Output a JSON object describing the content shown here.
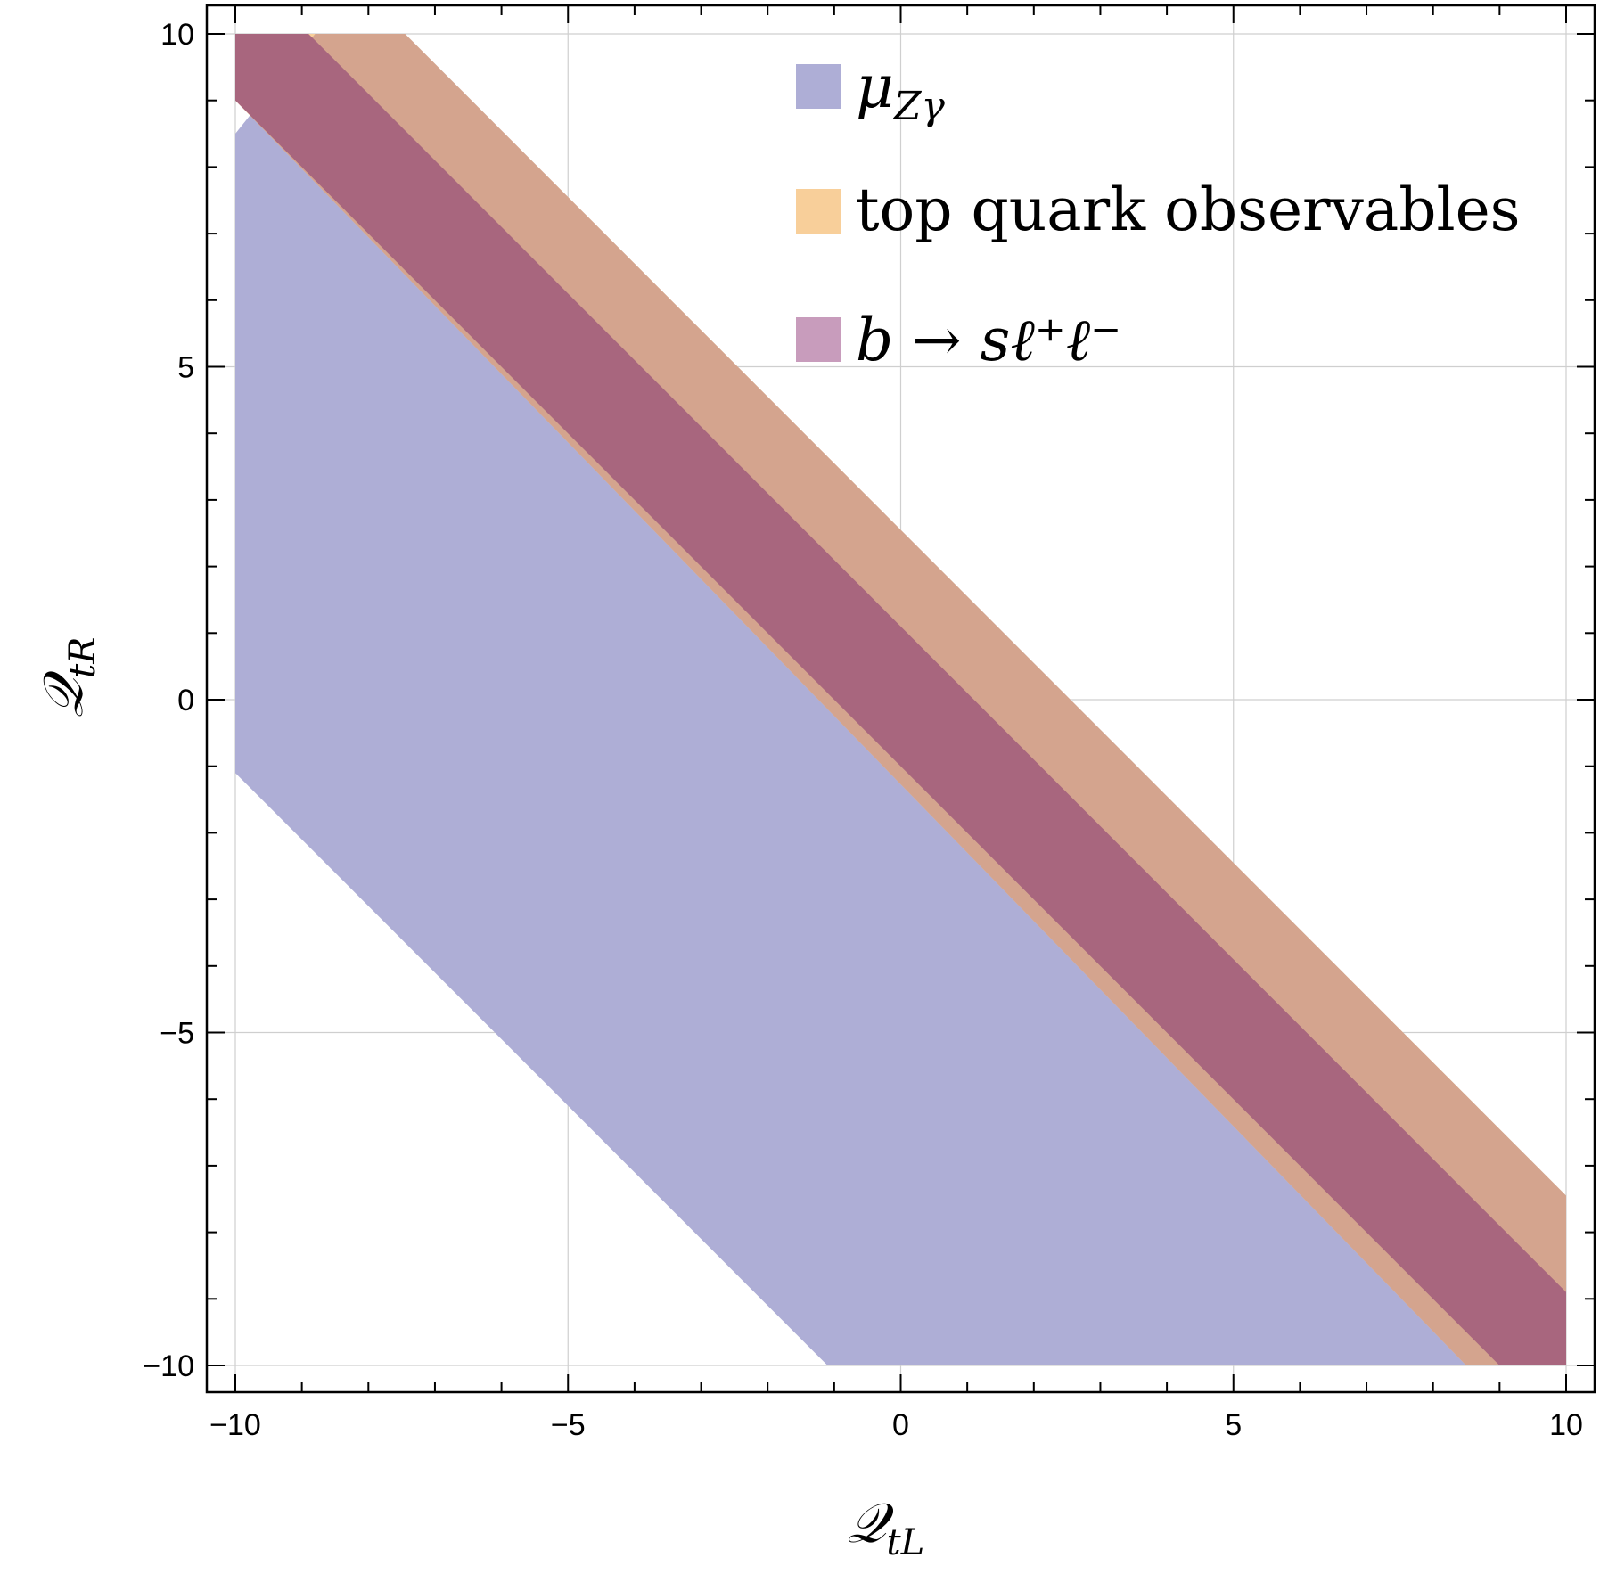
{
  "chart_data": {
    "type": "area",
    "title": "",
    "xlabel": {
      "main": "𝒬",
      "sub": "tL"
    },
    "ylabel": {
      "main": "𝒬",
      "sub": "tR"
    },
    "xlim": [
      -10,
      10
    ],
    "ylim": [
      -10,
      10
    ],
    "xticks": [
      -10,
      -5,
      0,
      5,
      10
    ],
    "yticks": [
      -10,
      -5,
      0,
      5,
      10
    ],
    "xtick_labels": [
      "−10",
      "−5",
      "0",
      "5",
      "10"
    ],
    "ytick_labels": [
      "−10",
      "−5",
      "0",
      "5",
      "10"
    ],
    "grid": true,
    "legend_position": "top-right",
    "series": [
      {
        "name": "μ_{Zγ}",
        "legend_main": "μ",
        "legend_sub": "Zγ",
        "color": "#aeaed6",
        "polygon": [
          [
            -10,
            -1.1
          ],
          [
            -10,
            8.5
          ],
          [
            -8.8,
            10
          ],
          [
            -7.45,
            10
          ],
          [
            10,
            -7.45
          ],
          [
            10,
            -10
          ],
          [
            -1.1,
            -10
          ]
        ]
      },
      {
        "name": "top quark observables",
        "legend_main": "top quark observables",
        "color": "#f8cf9a",
        "polygon": [
          [
            -10,
            9.0
          ],
          [
            -10,
            10
          ],
          [
            -7.45,
            10
          ],
          [
            10,
            -7.45
          ],
          [
            10,
            -10
          ],
          [
            8.5,
            -10
          ]
        ]
      },
      {
        "name": "b → sℓ⁺ℓ⁻",
        "legend_main": "b → sℓ⁺ℓ⁻",
        "color": "#a45c82",
        "polygon": [
          [
            -10,
            10
          ],
          [
            -8.9,
            10
          ],
          [
            10,
            -8.9
          ],
          [
            10,
            -10
          ],
          [
            9.0,
            -10
          ],
          [
            -10,
            9.0
          ]
        ]
      }
    ],
    "overlap_colors": {
      "top_and_muZgamma": "#d4a48e",
      "all_three": "#a8667e"
    }
  }
}
